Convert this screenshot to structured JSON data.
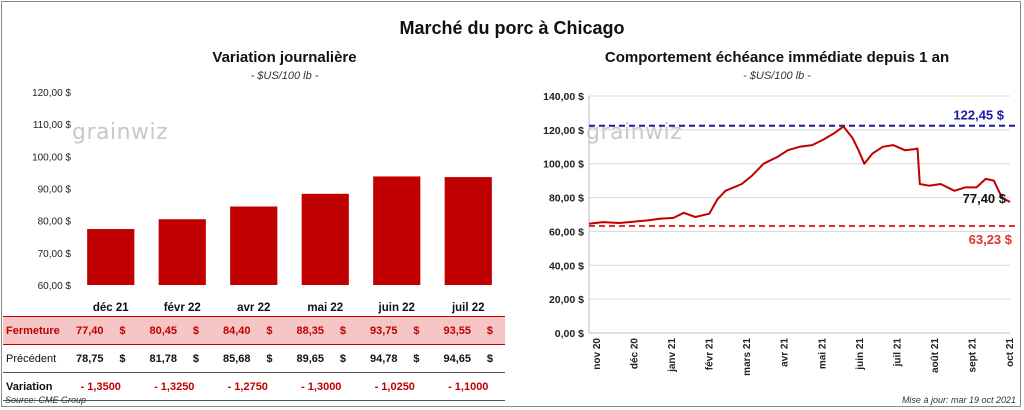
{
  "title": "Marché du porc à Chicago",
  "left": {
    "title": "Variation  journalière",
    "subtitle": "- $US/100 lb -",
    "logo": "grainwiz"
  },
  "right": {
    "title": "Comportement  échéance immédiate depuis 1 an",
    "subtitle": "- $US/100 lb -",
    "logo": "grainwiz"
  },
  "table": {
    "months": [
      "déc 21",
      "févr 22",
      "avr 22",
      "mai 22",
      "juin 22",
      "juil 22"
    ],
    "rows": [
      {
        "label": "Fermeture",
        "values": [
          "77,40",
          "80,45",
          "84,40",
          "88,35",
          "93,75",
          "93,55"
        ],
        "unit": "$"
      },
      {
        "label": "Précédent",
        "values": [
          "78,75",
          "81,78",
          "85,68",
          "89,65",
          "94,78",
          "94,65"
        ],
        "unit": "$"
      },
      {
        "label": "Variation",
        "values": [
          "- 1,3500",
          "- 1,3250",
          "- 1,2750",
          "- 1,3000",
          "- 1,0250",
          "- 1,1000"
        ],
        "unit": ""
      }
    ]
  },
  "footer": {
    "source": "Source: CME Group",
    "updated": "Mise à jour: mar 19 oct 2021"
  },
  "colors": {
    "bar": "#c00000",
    "line": "#c00000",
    "high_line": "#1a1aa8",
    "low_line": "#e03030",
    "grid": "#d9d9d9"
  },
  "chart_data": [
    {
      "type": "bar",
      "title": "Variation  journalière",
      "subtitle": "- $US/100 lb -",
      "categories": [
        "déc 21",
        "févr 22",
        "avr 22",
        "mai 22",
        "juin 22",
        "juil 22"
      ],
      "values": [
        77.4,
        80.45,
        84.4,
        88.35,
        93.75,
        93.55
      ],
      "ylim": [
        60,
        120
      ],
      "yticks": [
        "60,00 $",
        "70,00 $",
        "80,00 $",
        "90,00 $",
        "100,00 $",
        "110,00 $",
        "120,00 $"
      ],
      "ytick_values": [
        60,
        70,
        80,
        90,
        100,
        110,
        120
      ],
      "grid": false
    },
    {
      "type": "line",
      "title": "Comportement  échéance immédiate depuis 1 an",
      "subtitle": "- $US/100 lb -",
      "x_labels": [
        "nov 20",
        "déc 20",
        "janv 21",
        "févr 21",
        "mars 21",
        "avr 21",
        "mai 21",
        "juin 21",
        "juil 21",
        "août 21",
        "sept 21",
        "oct 21"
      ],
      "ylim": [
        0,
        140
      ],
      "yticks": [
        "0,00 $",
        "20,00 $",
        "40,00 $",
        "60,00 $",
        "80,00 $",
        "100,00 $",
        "120,00 $",
        "140,00 $"
      ],
      "ytick_values": [
        0,
        20,
        40,
        60,
        80,
        100,
        120,
        140
      ],
      "grid": true,
      "x": [
        "2020-10-20",
        "2020-11-01",
        "2020-11-15",
        "2020-12-01",
        "2020-12-10",
        "2020-12-20",
        "2021-01-01",
        "2021-01-10",
        "2021-01-20",
        "2021-02-01",
        "2021-02-08",
        "2021-02-15",
        "2021-02-22",
        "2021-03-01",
        "2021-03-10",
        "2021-03-20",
        "2021-04-01",
        "2021-04-10",
        "2021-04-20",
        "2021-05-01",
        "2021-05-10",
        "2021-05-20",
        "2021-05-28",
        "2021-06-05",
        "2021-06-10",
        "2021-06-15",
        "2021-06-22",
        "2021-07-01",
        "2021-07-10",
        "2021-07-20",
        "2021-07-28",
        "2021-07-31",
        "2021-08-02",
        "2021-08-10",
        "2021-08-20",
        "2021-09-01",
        "2021-09-10",
        "2021-09-20",
        "2021-09-28",
        "2021-10-05",
        "2021-10-12",
        "2021-10-19"
      ],
      "y": [
        64.5,
        65.5,
        65.0,
        66.0,
        66.5,
        67.5,
        68.0,
        71.0,
        68.5,
        70.5,
        79.0,
        84.0,
        86.0,
        88.0,
        93.0,
        100.0,
        104.0,
        108.0,
        110.0,
        111.0,
        114.0,
        118.0,
        122.0,
        115.0,
        108.0,
        100.0,
        106.0,
        110.0,
        111.0,
        108.0,
        108.5,
        109.0,
        88.0,
        87.0,
        88.0,
        84.0,
        86.0,
        86.0,
        91.0,
        90.0,
        80.0,
        77.4
      ],
      "hlines": [
        {
          "value": 122.45,
          "label": "122,45 $"
        },
        {
          "value": 63.23,
          "label": "63,23 $"
        }
      ],
      "last_label": "77,40 $"
    }
  ]
}
